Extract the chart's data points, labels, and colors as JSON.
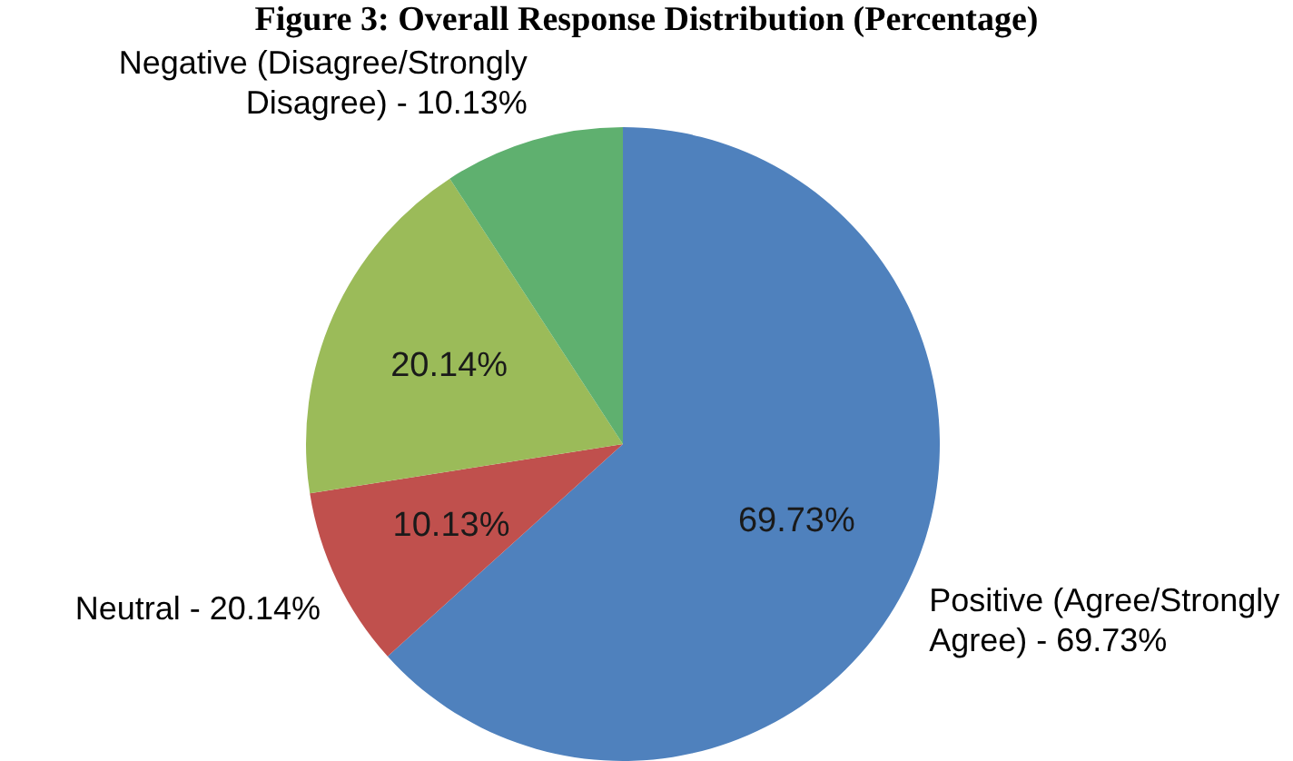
{
  "chart_data": {
    "type": "pie",
    "title": "Figure 3: Overall Response Distribution (Percentage)",
    "categories": [
      "Positive (Agree/Strongly Agree) - 69.73%",
      "Neutral - 20.14%",
      null,
      "Negative (Disagree/Strongly Disagree) - 10.13%"
    ],
    "values": [
      69.73,
      10.13,
      20.14,
      10.13
    ],
    "value_labels": [
      "69.73%",
      "10.13%",
      "20.14%",
      null
    ],
    "colors": [
      "#4f81bd",
      "#c0504d",
      "#9bbb59",
      "#5fb06f"
    ]
  }
}
